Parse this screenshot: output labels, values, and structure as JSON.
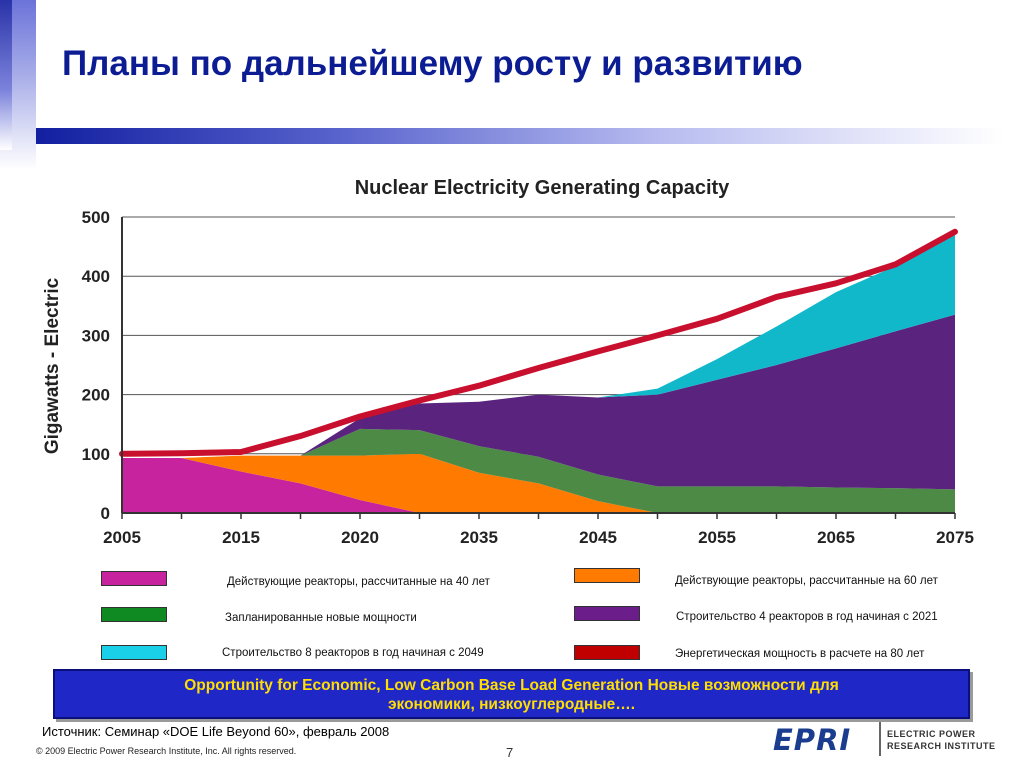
{
  "slide": {
    "title": "Планы по дальнейшему росту и развитию",
    "banner_text_en": "Opportunity for Economic, Low Carbon Base Load Generation",
    "banner_text_ru_1": "Новые возможности для",
    "banner_text_ru_2": "экономики, низкоуглеродные….",
    "source": "Источник: Семинар «DOE Life Beyond 60», февраль 2008",
    "copyright": "© 2009 Electric Power Research Institute, Inc. All rights reserved.",
    "page_number": "7",
    "logo_text": "EPRI",
    "logo_line1": "ELECTRIC POWER",
    "logo_line2": "RESEARCH INSTITUTE"
  },
  "chart_data": {
    "type": "area",
    "title": "Nuclear Electricity Generating Capacity",
    "ylabel": "Gigawatts - Electric",
    "ylim": [
      0,
      500
    ],
    "yticks": [
      "0",
      "100",
      "200",
      "300",
      "400",
      "500"
    ],
    "x_tick_labels": [
      "2005",
      "2015",
      "2020",
      "2035",
      "2045",
      "2055",
      "2065",
      "2075"
    ],
    "x_points": [
      0,
      1,
      2,
      3,
      4,
      5,
      6,
      7,
      8,
      9,
      10,
      11,
      12,
      13,
      14
    ],
    "series": [
      {
        "name": "Действующие реакторы, рассчитанные на 40 лет",
        "color": "#c7239e",
        "values": [
          93,
          93,
          70,
          50,
          22,
          0,
          0,
          0,
          0,
          0,
          0,
          0,
          0,
          0,
          0
        ]
      },
      {
        "name": "Действующие реакторы, рассчитанные на 60 лет",
        "color": "#ff7a00",
        "values": [
          0,
          0,
          27,
          47,
          75,
          100,
          68,
          50,
          20,
          0,
          0,
          0,
          0,
          0,
          0
        ]
      },
      {
        "name": "Запланированные новые мощности",
        "color": "#4c8a46",
        "values": [
          0,
          0,
          0,
          0,
          45,
          40,
          45,
          45,
          45,
          45,
          45,
          45,
          43,
          42,
          40
        ]
      },
      {
        "name": "Строительство 4 реакторов в год начиная с 2021",
        "color": "#5a237e",
        "values": [
          0,
          0,
          0,
          0,
          18,
          45,
          75,
          105,
          130,
          155,
          180,
          205,
          235,
          265,
          295
        ]
      },
      {
        "name": "Строительство 8 реакторов в год начиная с 2049",
        "color": "#10b8c9",
        "values": [
          0,
          0,
          0,
          0,
          0,
          0,
          0,
          0,
          0,
          10,
          35,
          65,
          95,
          110,
          135
        ]
      }
    ],
    "line_series": {
      "name": "Энергетическая мощность в расчете на 80 лет",
      "color": "#c8102e",
      "values": [
        100,
        101,
        103,
        130,
        163,
        190,
        215,
        245,
        273,
        300,
        328,
        365,
        388,
        420,
        475
      ]
    },
    "legend": [
      {
        "label": "Действующие реакторы, рассчитанные на 40 лет",
        "color": "#c7239e"
      },
      {
        "label": "Запланированные новые мощности",
        "color": "#0f8a23"
      },
      {
        "label": "Строительство 8 реакторов в год начиная с 2049",
        "color": "#1ad0e8"
      },
      {
        "label": "Действующие реакторы, рассчитанные на 60 лет",
        "color": "#ff7a00"
      },
      {
        "label": "Строительство 4 реакторов в год начиная с 2021",
        "color": "#6b1d8a"
      },
      {
        "label": "Энергетическая мощность в расчете на 80 лет",
        "color": "#c00000"
      }
    ]
  }
}
